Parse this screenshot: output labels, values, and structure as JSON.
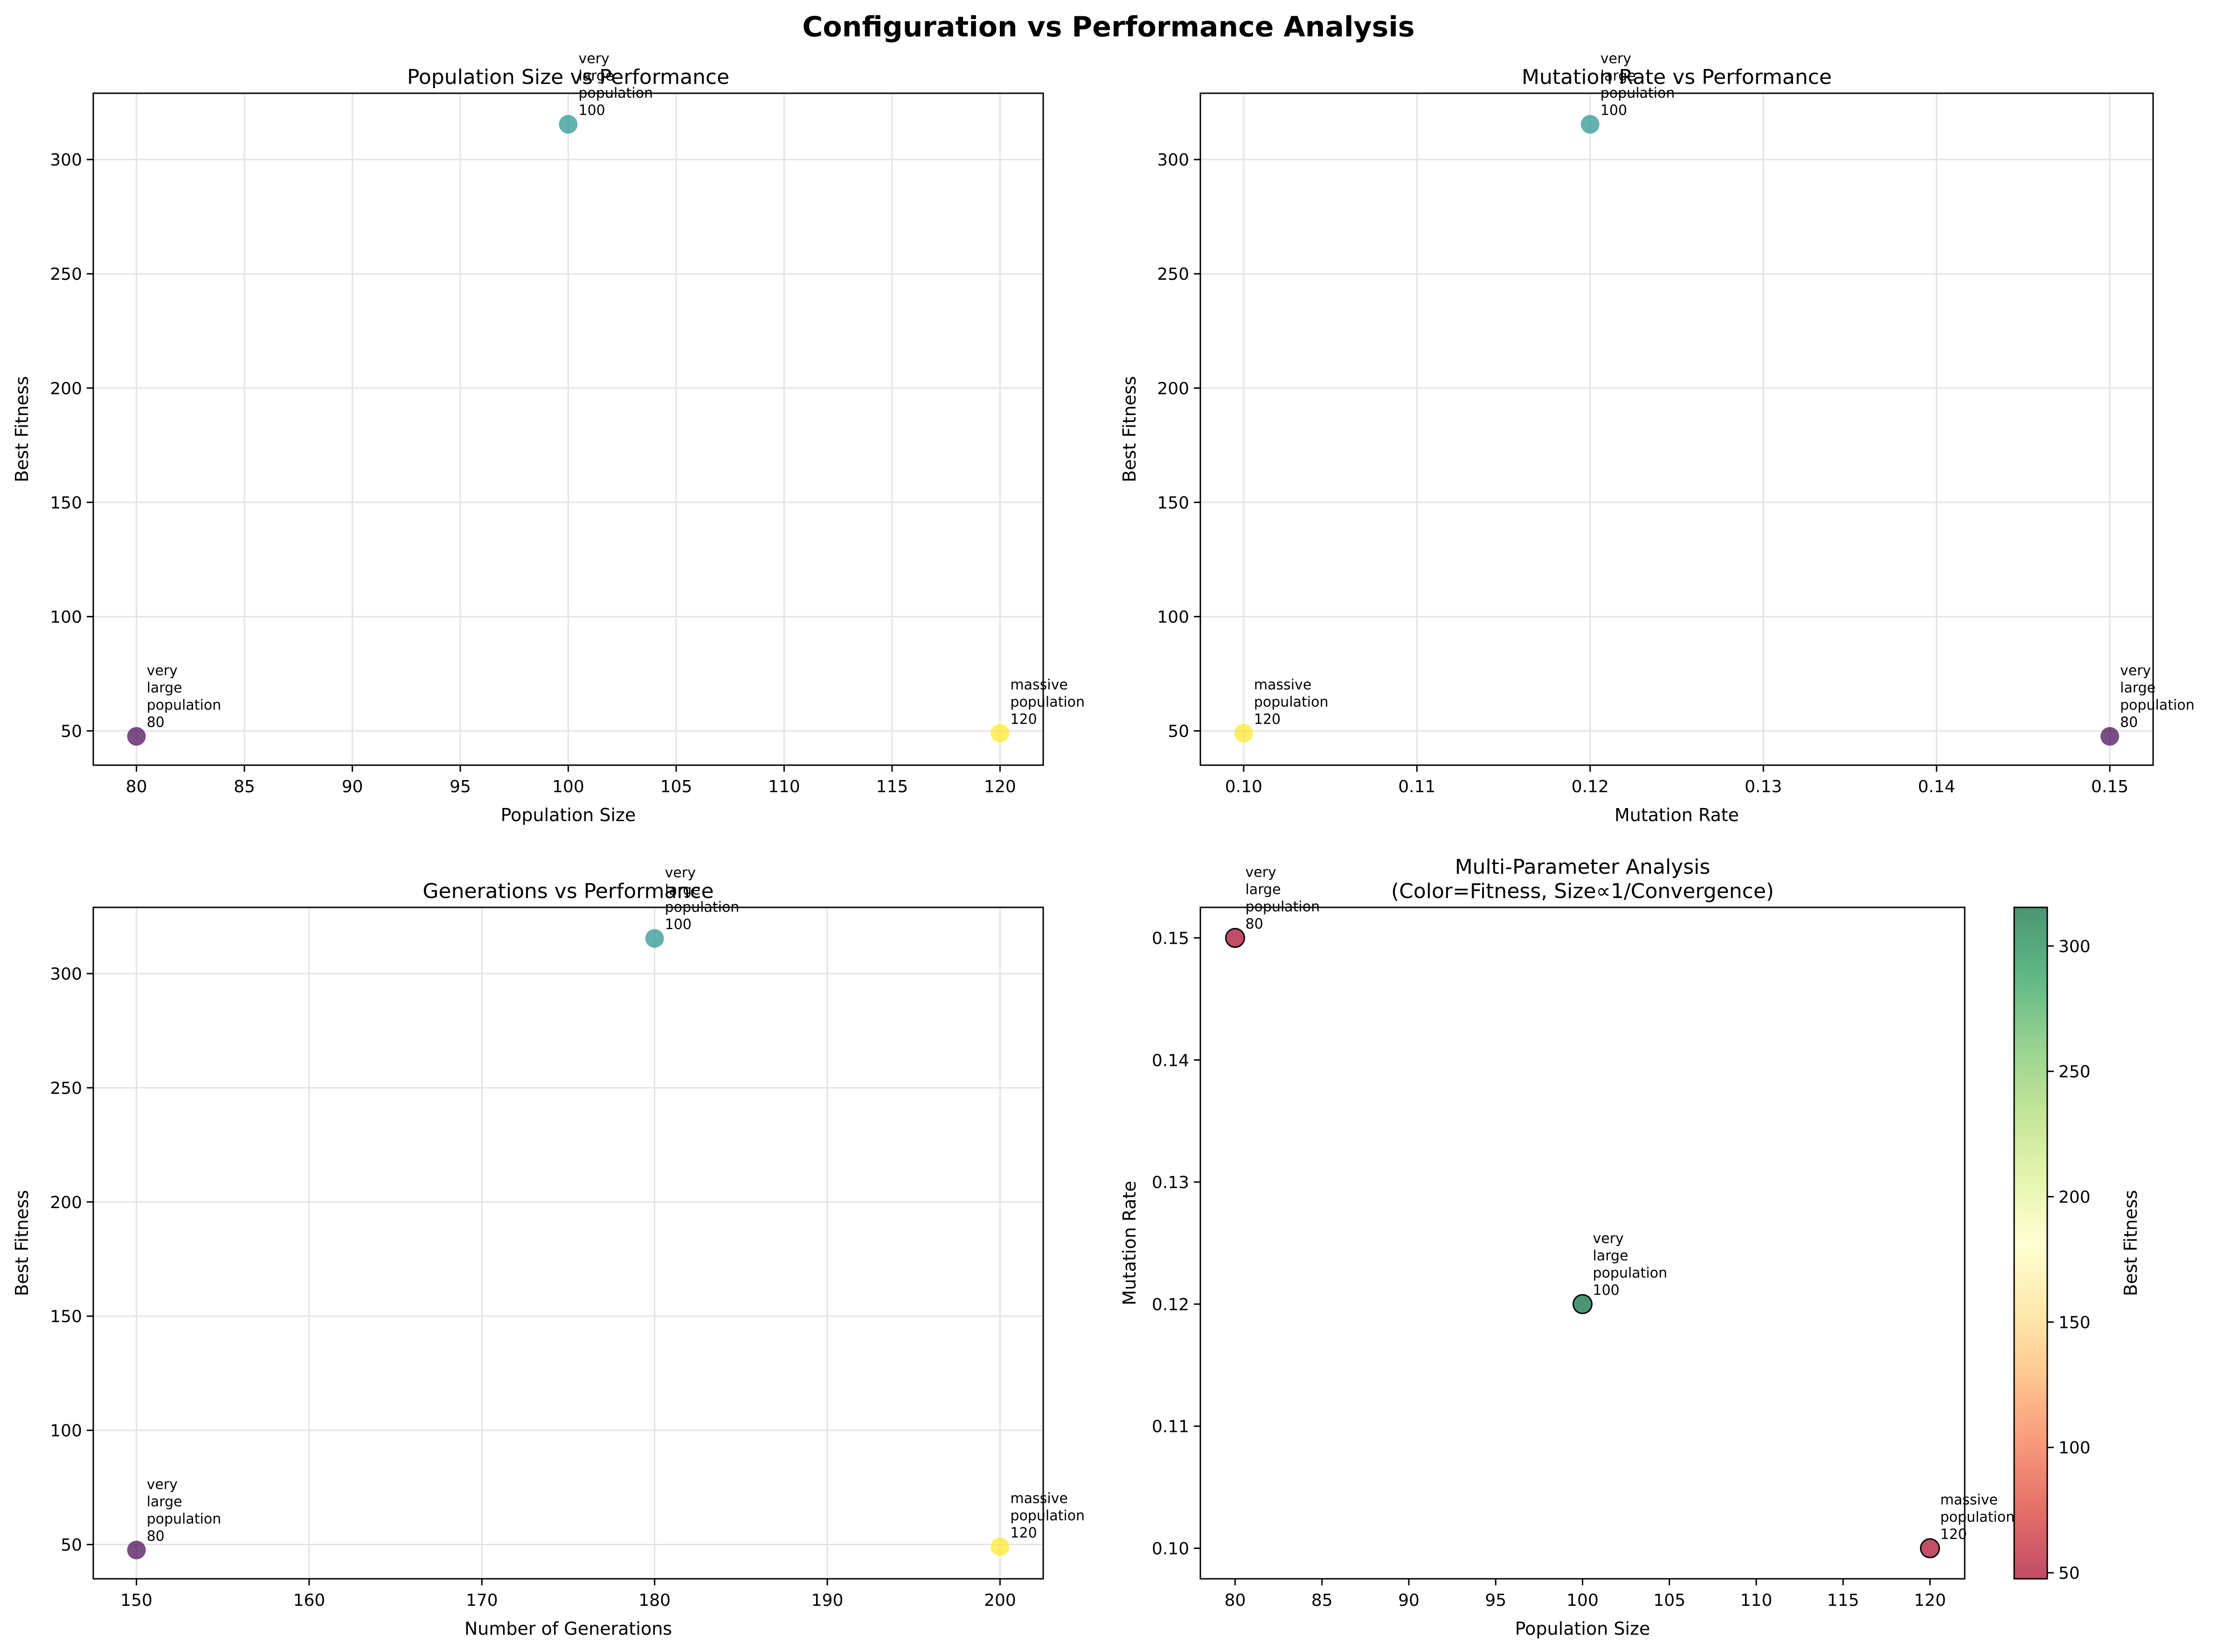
{
  "figure": {
    "title": "Configuration vs Performance Analysis"
  },
  "chart_data": [
    {
      "type": "scatter",
      "title": "Population Size vs Performance",
      "xlabel": "Population Size",
      "ylabel": "Best Fitness",
      "xlim": [
        78,
        122
      ],
      "ylim": [
        35,
        329
      ],
      "xticks": [
        80,
        85,
        90,
        95,
        100,
        105,
        110,
        115,
        120
      ],
      "yticks": [
        50,
        100,
        150,
        200,
        250,
        300
      ],
      "grid": true,
      "x": [
        80,
        100,
        120
      ],
      "y": [
        47.6,
        315.4,
        49.0
      ],
      "point_colors": [
        "#440154",
        "#21918c",
        "#fde725"
      ],
      "point_labels": [
        [
          "very",
          "large",
          "population",
          "80"
        ],
        [
          "very",
          "large",
          "population",
          "100"
        ],
        [
          "massive",
          "population",
          "120"
        ]
      ]
    },
    {
      "type": "scatter",
      "title": "Mutation Rate vs Performance",
      "xlabel": "Mutation Rate",
      "ylabel": "Best Fitness",
      "xlim": [
        0.0975,
        0.1525
      ],
      "ylim": [
        35,
        329
      ],
      "xticks": [
        0.1,
        0.11,
        0.12,
        0.13,
        0.14,
        0.15
      ],
      "xtick_labels": [
        "0.10",
        "0.11",
        "0.12",
        "0.13",
        "0.14",
        "0.15"
      ],
      "yticks": [
        50,
        100,
        150,
        200,
        250,
        300
      ],
      "grid": true,
      "x": [
        0.15,
        0.12,
        0.1
      ],
      "y": [
        47.6,
        315.4,
        49.0
      ],
      "point_colors": [
        "#440154",
        "#21918c",
        "#fde725"
      ],
      "point_labels": [
        [
          "very",
          "large",
          "population",
          "80"
        ],
        [
          "very",
          "large",
          "population",
          "100"
        ],
        [
          "massive",
          "population",
          "120"
        ]
      ]
    },
    {
      "type": "scatter",
      "title": "Generations vs Performance",
      "xlabel": "Number of Generations",
      "ylabel": "Best Fitness",
      "xlim": [
        147.5,
        202.5
      ],
      "ylim": [
        35,
        329
      ],
      "xticks": [
        150,
        160,
        170,
        180,
        190,
        200
      ],
      "yticks": [
        50,
        100,
        150,
        200,
        250,
        300
      ],
      "grid": true,
      "x": [
        150,
        180,
        200
      ],
      "y": [
        47.6,
        315.4,
        49.0
      ],
      "point_colors": [
        "#440154",
        "#21918c",
        "#fde725"
      ],
      "point_labels": [
        [
          "very",
          "large",
          "population",
          "80"
        ],
        [
          "very",
          "large",
          "population",
          "100"
        ],
        [
          "massive",
          "population",
          "120"
        ]
      ]
    },
    {
      "type": "scatter",
      "title": "Multi-Parameter Analysis\n(Color=Fitness, Size∝1/Convergence)",
      "xlabel": "Population Size",
      "ylabel": "Mutation Rate",
      "xlim": [
        78,
        122
      ],
      "ylim": [
        0.0975,
        0.1525
      ],
      "xticks": [
        80,
        85,
        90,
        95,
        100,
        105,
        110,
        115,
        120
      ],
      "yticks": [
        0.1,
        0.11,
        0.12,
        0.13,
        0.14,
        0.15
      ],
      "ytick_labels": [
        "0.10",
        "0.11",
        "0.12",
        "0.13",
        "0.14",
        "0.15"
      ],
      "grid": false,
      "x": [
        80,
        100,
        120
      ],
      "y": [
        0.15,
        0.12,
        0.1
      ],
      "fitness": [
        47.6,
        315.4,
        49.0
      ],
      "point_labels": [
        [
          "very",
          "large",
          "population",
          "80"
        ],
        [
          "very",
          "large",
          "population",
          "100"
        ],
        [
          "massive",
          "population",
          "120"
        ]
      ],
      "colorbar": {
        "label": "Best Fitness",
        "range": [
          47.6,
          315.4
        ],
        "ticks": [
          50,
          100,
          150,
          200,
          250,
          300
        ],
        "colormap": "RdYlGn",
        "colors": [
          "#a50026",
          "#d73027",
          "#f46d43",
          "#fdae61",
          "#fee08b",
          "#ffffbf",
          "#d9ef8b",
          "#a6d96a",
          "#66bd63",
          "#1a9850",
          "#006837"
        ]
      }
    }
  ]
}
